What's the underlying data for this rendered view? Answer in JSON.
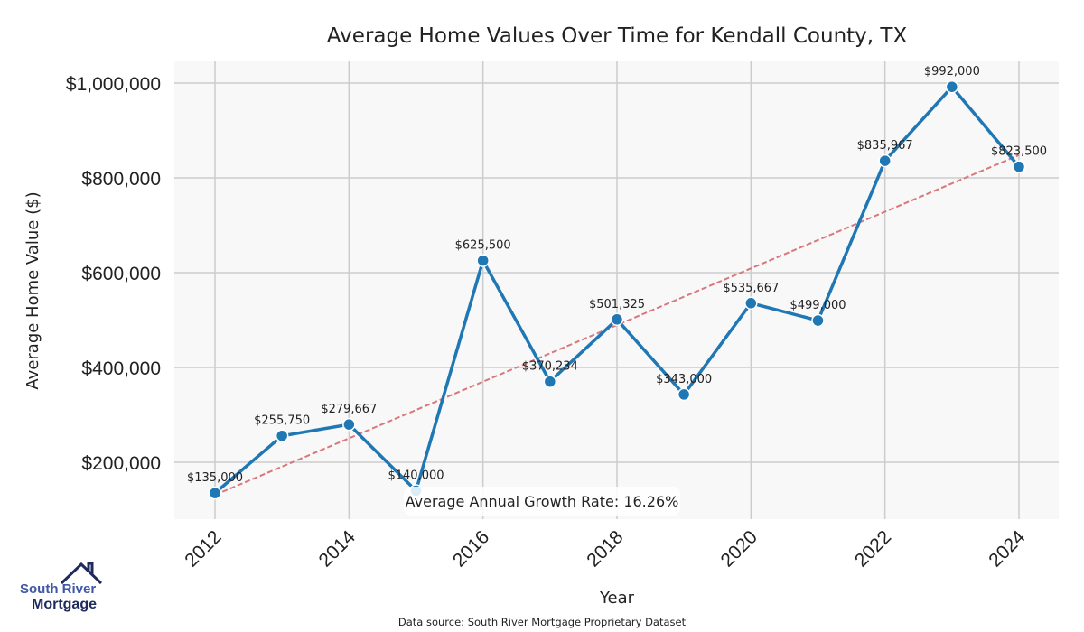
{
  "chart_data": {
    "type": "line",
    "title": "Average Home Values Over Time for Kendall County, TX",
    "xlabel": "Year",
    "ylabel": "Average Home Value ($)",
    "x": [
      2012,
      2013,
      2014,
      2015,
      2016,
      2017,
      2018,
      2019,
      2020,
      2021,
      2022,
      2023,
      2024
    ],
    "values": [
      135000,
      255750,
      279667,
      140000,
      625500,
      370234,
      501325,
      343000,
      535667,
      499000,
      835967,
      992000,
      823500
    ],
    "data_labels": [
      "$135,000",
      "$255,750",
      "$279,667",
      "$140,000",
      "$625,500",
      "$370,234",
      "$501,325",
      "$343,000",
      "$535,667",
      "$499,000",
      "$835,967",
      "$992,000",
      "$823,500"
    ],
    "x_ticks": [
      "2012",
      "2014",
      "2016",
      "2018",
      "2020",
      "2022",
      "2024"
    ],
    "y_ticks": [
      {
        "v": 200000,
        "label": "$200,000"
      },
      {
        "v": 400000,
        "label": "$400,000"
      },
      {
        "v": 600000,
        "label": "$600,000"
      },
      {
        "v": 800000,
        "label": "$800,000"
      },
      {
        "v": 1000000,
        "label": "$1,000,000"
      }
    ],
    "ylim": [
      80000,
      1095000
    ],
    "xlim": [
      2011.4,
      2024.6
    ],
    "trend": {
      "start": 131000,
      "end": 848000,
      "color": "#d9777a"
    },
    "annotation": "Average Annual Growth Rate: 16.26%",
    "grid": true,
    "line_color": "#1f77b4"
  },
  "logo": {
    "line1": "South River",
    "line2": "Mortgage"
  },
  "source": "Data source: South River Mortgage Proprietary Dataset"
}
